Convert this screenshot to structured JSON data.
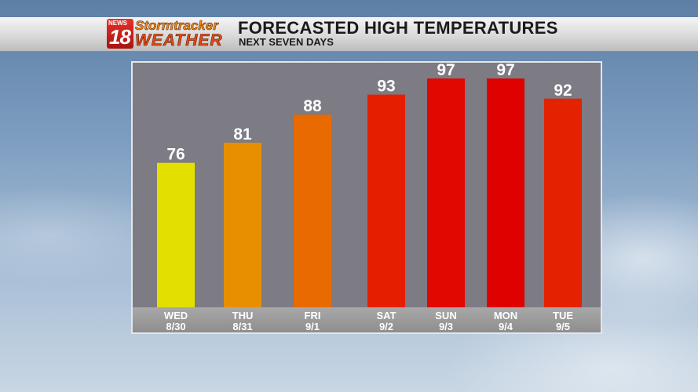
{
  "header": {
    "logo_news": "NEWS",
    "logo_number": "18",
    "logo_line1": "Stormtracker",
    "logo_line2": "WEATHER",
    "title": "FORECASTED HIGH TEMPERATURES",
    "subtitle": "NEXT SEVEN DAYS"
  },
  "chart_data": {
    "type": "bar",
    "title": "FORECASTED HIGH TEMPERATURES",
    "subtitle": "NEXT SEVEN DAYS",
    "categories": [
      "WED",
      "THU",
      "FRI",
      "SAT",
      "SUN",
      "MON",
      "TUE"
    ],
    "dates": [
      "8/30",
      "8/31",
      "9/1",
      "9/2",
      "9/3",
      "9/4",
      "9/5"
    ],
    "values": [
      76,
      81,
      88,
      93,
      97,
      97,
      92
    ],
    "colors": [
      "#e3e000",
      "#e88f00",
      "#e86a00",
      "#e61e00",
      "#e00800",
      "#df0000",
      "#e42200"
    ],
    "xlabel": "",
    "ylabel": "",
    "grid": false,
    "legend": "none"
  }
}
